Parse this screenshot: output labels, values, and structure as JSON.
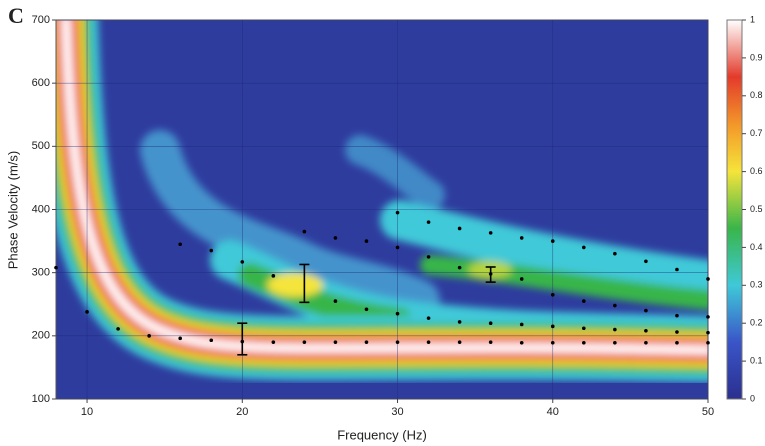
{
  "chart_data": {
    "type": "scatter",
    "title": "C",
    "x_label": "Frequency (Hz)",
    "y_label": "Phase Velocity (m/s)",
    "xlim": [
      8,
      50
    ],
    "ylim": [
      100,
      700
    ],
    "xticks": [
      10,
      20,
      30,
      40,
      50
    ],
    "yticks": [
      100,
      200,
      300,
      400,
      500,
      600,
      700
    ],
    "grid": true,
    "series": [
      {
        "color": "#000000",
        "x": [
          8,
          10,
          12,
          14,
          16,
          18,
          20,
          22,
          24,
          26,
          28,
          30,
          32,
          34,
          36,
          38,
          40,
          42,
          44,
          46,
          48,
          50
        ],
        "values": [
          308,
          238,
          211,
          200,
          196,
          193,
          191,
          190,
          190,
          190,
          190,
          190,
          190,
          190,
          190,
          189,
          189,
          189,
          189,
          189,
          189,
          189
        ]
      },
      {
        "color": "#000000",
        "x": [
          16,
          18,
          20,
          22,
          26,
          28,
          30,
          32,
          34,
          36,
          38,
          40,
          42,
          44,
          46,
          48,
          50
        ],
        "values": [
          345,
          335,
          317,
          295,
          255,
          242,
          235,
          228,
          222,
          220,
          218,
          215,
          212,
          210,
          208,
          206,
          205
        ]
      },
      {
        "color": "#000000",
        "x": [
          24,
          26,
          28,
          30,
          32,
          34,
          36,
          38,
          40,
          42,
          44,
          46,
          48,
          50
        ],
        "values": [
          365,
          355,
          350,
          340,
          325,
          308,
          298,
          290,
          265,
          255,
          248,
          240,
          232,
          230
        ]
      },
      {
        "color": "#000000",
        "x": [
          30,
          32,
          34,
          36,
          38,
          40,
          42,
          44,
          46,
          48,
          50
        ],
        "values": [
          395,
          380,
          370,
          363,
          355,
          350,
          340,
          330,
          318,
          305,
          290
        ]
      }
    ],
    "error_bars": [
      {
        "x": 20,
        "y": 195,
        "error": 25
      },
      {
        "x": 24,
        "y": 283,
        "error": 30
      },
      {
        "x": 36,
        "y": 297,
        "error": 12
      }
    ],
    "colorbar": {
      "lim": [
        0,
        1
      ],
      "ticks": [
        0,
        0.1,
        0.2,
        0.3,
        0.4,
        0.5,
        0.6,
        0.7,
        0.8,
        0.9,
        1
      ]
    }
  }
}
